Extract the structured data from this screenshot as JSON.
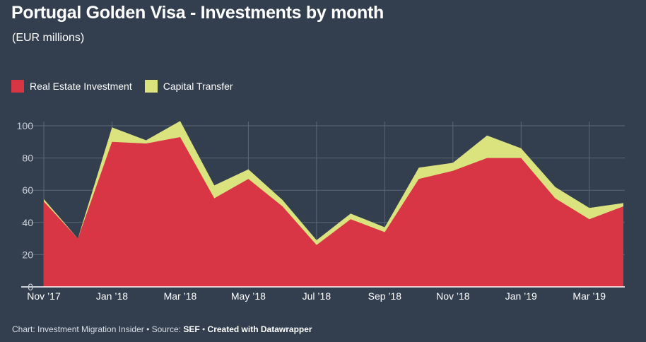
{
  "header": {
    "title": "Portugal Golden Visa - Investments by month",
    "subtitle": "(EUR millions)"
  },
  "footer": {
    "prefix": "Chart: Investment Migration Insider • Source: ",
    "source": "SEF",
    "separator": " • ",
    "credit": "Created with Datawrapper"
  },
  "colors": {
    "background": "#333f4f",
    "real_estate": "#d93645",
    "capital_transfer": "#dbe37f",
    "grid": "#5b6676"
  },
  "chart_data": {
    "type": "area",
    "stacked": true,
    "x": [
      "Nov '17",
      "Dec '17",
      "Jan '18",
      "Feb '18",
      "Mar '18",
      "Apr '18",
      "May '18",
      "Jun '18",
      "Jul '18",
      "Aug '18",
      "Sep '18",
      "Oct '18",
      "Nov '18",
      "Dec '18",
      "Jan '19",
      "Feb '19",
      "Mar '19",
      "Apr '19"
    ],
    "x_tick_labels": [
      "Nov ’17",
      "Jan ’18",
      "Mar ’18",
      "May ’18",
      "Jul ’18",
      "Sep ’18",
      "Nov ’18",
      "Jan ’19",
      "Mar ’19"
    ],
    "x_tick_index": [
      0,
      2,
      4,
      6,
      8,
      10,
      12,
      14,
      16
    ],
    "series": [
      {
        "name": "Real Estate Investment",
        "color": "#d93645",
        "values": [
          53,
          30,
          90,
          89,
          93,
          55,
          67,
          50,
          26,
          42,
          34,
          67,
          72,
          80,
          80,
          55,
          42,
          50
        ]
      },
      {
        "name": "Capital Transfer",
        "color": "#dbe37f",
        "values": [
          1.5,
          0,
          9,
          2,
          10,
          8,
          6,
          4,
          3,
          3.5,
          3,
          7,
          5,
          14,
          6,
          7,
          7,
          2
        ]
      }
    ],
    "ylim": [
      0,
      100
    ],
    "y_ticks": [
      0,
      20,
      40,
      60,
      80,
      100
    ],
    "grid": true,
    "legend_position": "top-left"
  }
}
